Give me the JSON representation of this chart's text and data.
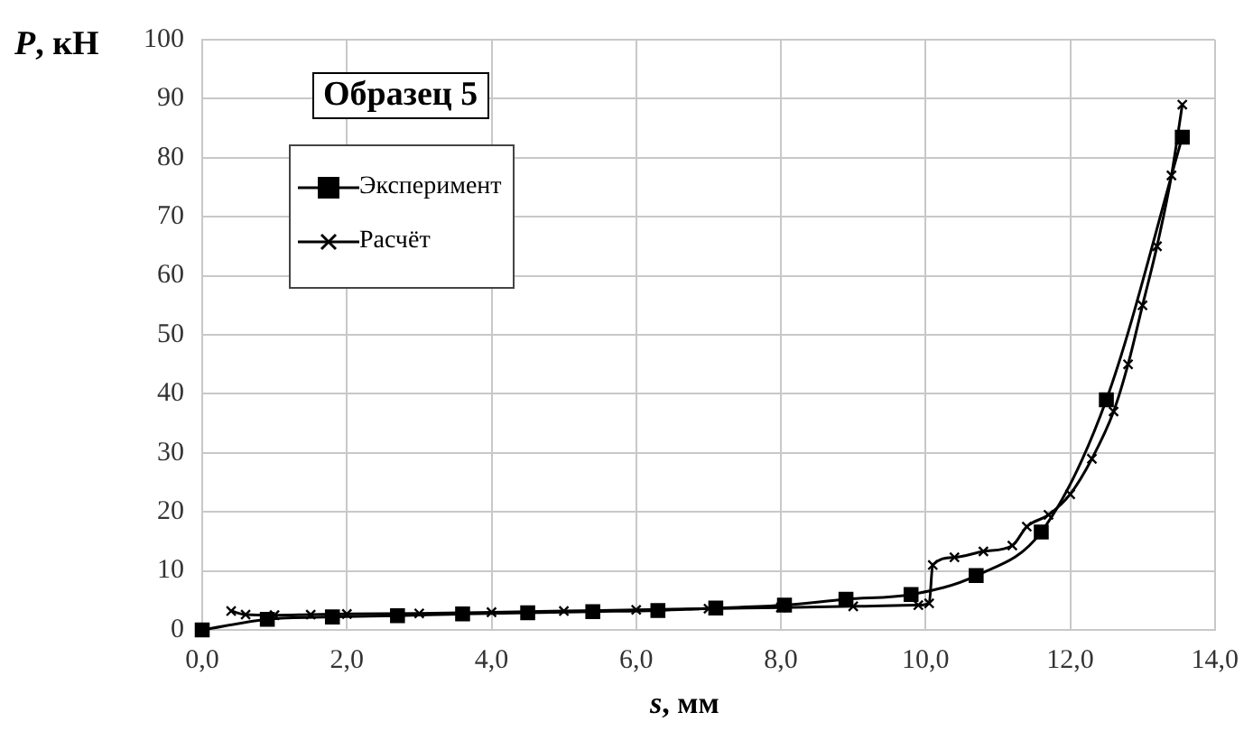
{
  "chart_data": {
    "type": "line",
    "title": "Образец 5",
    "xlabel": "s, мм",
    "ylabel": "P, кН",
    "xlim": [
      0,
      14
    ],
    "xticks": [
      {
        "value": 0,
        "label": "0,0"
      },
      {
        "value": 2,
        "label": "2,0"
      },
      {
        "value": 4,
        "label": "4,0"
      },
      {
        "value": 6,
        "label": "6,0"
      },
      {
        "value": 8,
        "label": "8,0"
      },
      {
        "value": 10,
        "label": "10,0"
      },
      {
        "value": 12,
        "label": "12,0"
      },
      {
        "value": 14,
        "label": "14,0"
      }
    ],
    "ylim": [
      0,
      100
    ],
    "yticks": [
      0,
      10,
      20,
      30,
      40,
      50,
      60,
      70,
      80,
      90,
      100
    ],
    "grid": true,
    "legend": "top left",
    "series": [
      {
        "name": "Эксперимент",
        "color": "#000000",
        "marker": "square",
        "x": [
          0,
          0.9,
          1.8,
          2.7,
          3.6,
          4.5,
          5.4,
          6.3,
          7.1,
          8.05,
          8.9,
          9.8,
          10.7,
          11.6,
          12.5,
          13.55
        ],
        "values": [
          0,
          1.8,
          2.2,
          2.4,
          2.7,
          2.9,
          3.1,
          3.3,
          3.7,
          4.2,
          5.2,
          6,
          9.2,
          16.6,
          39,
          83.5
        ]
      },
      {
        "name": "Расчёт",
        "color": "#000000",
        "marker": "cross",
        "x": [
          0.4,
          0.6,
          1,
          1.5,
          2,
          3,
          4,
          5,
          6,
          7,
          8,
          9,
          9.9,
          10.05,
          10.1,
          10.4,
          10.8,
          11.2,
          11.4,
          11.7,
          12,
          12.3,
          12.6,
          12.8,
          13,
          13.2,
          13.4,
          13.55
        ],
        "values": [
          3.2,
          2.6,
          2.5,
          2.6,
          2.7,
          2.8,
          3,
          3.2,
          3.4,
          3.6,
          3.8,
          4,
          4.2,
          4.5,
          11,
          12.3,
          13.3,
          14.3,
          17.5,
          19.5,
          23,
          29,
          37,
          45,
          55,
          65,
          77,
          89
        ]
      }
    ]
  }
}
